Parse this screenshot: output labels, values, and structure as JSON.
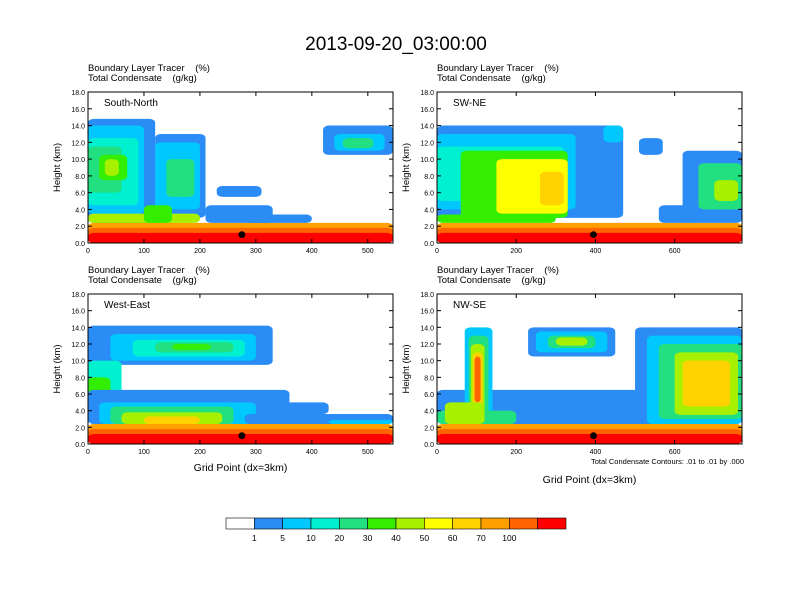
{
  "figure": {
    "title": "2013-09-20_03:00:00",
    "xlabel": "Grid Point (dx=3km)",
    "footnote": "Total Condensate Contours: .01 to .01 by .000"
  },
  "colorbar": {
    "levels": [
      "1",
      "5",
      "10",
      "20",
      "30",
      "40",
      "50",
      "60",
      "70",
      "100"
    ],
    "colors": [
      "#ffffff",
      "#2b8cf5",
      "#00c8ff",
      "#00f0d0",
      "#22e080",
      "#33ee00",
      "#a6f000",
      "#ffff00",
      "#ffd200",
      "#ffa000",
      "#ff6400",
      "#ff0000"
    ]
  },
  "chart_data": [
    {
      "type": "heatmap",
      "label": "South-North",
      "header": [
        "Boundary Layer Tracer    (%)",
        "Total Condensate    (g/kg)"
      ],
      "ylabel": "Height (km)",
      "xlabel": "",
      "xlim": [
        0,
        545
      ],
      "ylim": [
        0,
        18
      ],
      "xticks": [
        "0",
        "100",
        "200",
        "300",
        "400",
        "500"
      ],
      "yticks": [
        "0.0",
        "2.0",
        "4.0",
        "6.0",
        "8.0",
        "10.0",
        "12.0",
        "14.0",
        "16.0",
        "18.0"
      ],
      "marker": [
        275,
        1.0
      ]
    },
    {
      "type": "heatmap",
      "label": "SW-NE",
      "header": [
        "Boundary Layer Tracer    (%)",
        "Total Condensate    (g/kg)"
      ],
      "ylabel": "Height (km)",
      "xlabel": "",
      "xlim": [
        0,
        770
      ],
      "ylim": [
        0,
        18
      ],
      "xticks": [
        "0",
        "200",
        "400",
        "600"
      ],
      "yticks": [
        "0.0",
        "2.0",
        "4.0",
        "6.0",
        "8.0",
        "10.0",
        "12.0",
        "14.0",
        "16.0",
        "18.0"
      ],
      "marker": [
        395,
        1.0
      ]
    },
    {
      "type": "heatmap",
      "label": "West-East",
      "header": [
        "Boundary Layer Tracer    (%)",
        "Total Condensate    (g/kg)"
      ],
      "ylabel": "Height (km)",
      "xlabel": "Grid Point (dx=3km)",
      "xlim": [
        0,
        545
      ],
      "ylim": [
        0,
        18
      ],
      "xticks": [
        "0",
        "100",
        "200",
        "300",
        "400",
        "500"
      ],
      "yticks": [
        "0.0",
        "2.0",
        "4.0",
        "6.0",
        "8.0",
        "10.0",
        "12.0",
        "14.0",
        "16.0",
        "18.0"
      ],
      "marker": [
        275,
        1.0
      ]
    },
    {
      "type": "heatmap",
      "label": "NW-SE",
      "header": [
        "Boundary Layer Tracer    (%)",
        "Total Condensate    (g/kg)"
      ],
      "ylabel": "Height (km)",
      "xlabel": "Grid Point (dx=3km)",
      "xlim": [
        0,
        770
      ],
      "ylim": [
        0,
        18
      ],
      "xticks": [
        "0",
        "200",
        "400",
        "600"
      ],
      "yticks": [
        "0.0",
        "2.0",
        "4.0",
        "6.0",
        "8.0",
        "10.0",
        "12.0",
        "14.0",
        "16.0",
        "18.0"
      ],
      "marker": [
        395,
        1.0
      ]
    }
  ]
}
